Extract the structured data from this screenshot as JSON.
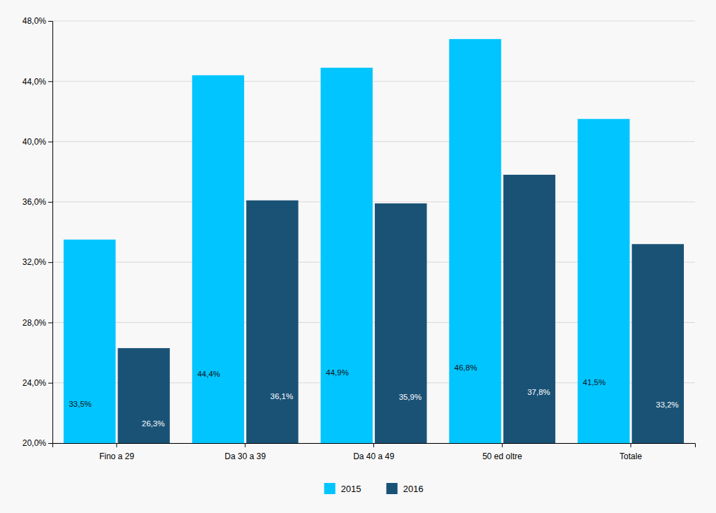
{
  "chart_data": {
    "type": "bar",
    "categories": [
      "Fino a 29",
      "Da 30 a 39",
      "Da 40 a 49",
      "50 ed oltre",
      "Totale"
    ],
    "series": [
      {
        "name": "2015",
        "color": "#00C5FF",
        "values": [
          33.5,
          44.4,
          44.9,
          46.8,
          41.5
        ],
        "value_labels": [
          "33,5%",
          "44,4%",
          "44,9%",
          "46,8%",
          "41,5%"
        ]
      },
      {
        "name": "2016",
        "color": "#1A5276",
        "values": [
          26.3,
          36.1,
          35.9,
          37.8,
          33.2
        ],
        "value_labels": [
          "26,3%",
          "36,1%",
          "35,9%",
          "37,8%",
          "33,2%"
        ]
      }
    ],
    "ylim": [
      20.0,
      48.0
    ],
    "yticks": [
      {
        "value": 20.0,
        "label": "20,0%"
      },
      {
        "value": 24.0,
        "label": "24,0%"
      },
      {
        "value": 28.0,
        "label": "28,0%"
      },
      {
        "value": 32.0,
        "label": "32,0%"
      },
      {
        "value": 36.0,
        "label": "36,0%"
      },
      {
        "value": 40.0,
        "label": "40,0%"
      },
      {
        "value": 44.0,
        "label": "44,0%"
      },
      {
        "value": 48.0,
        "label": "48,0%"
      }
    ],
    "grid": true,
    "legend": "bottom",
    "data_labels": true
  }
}
